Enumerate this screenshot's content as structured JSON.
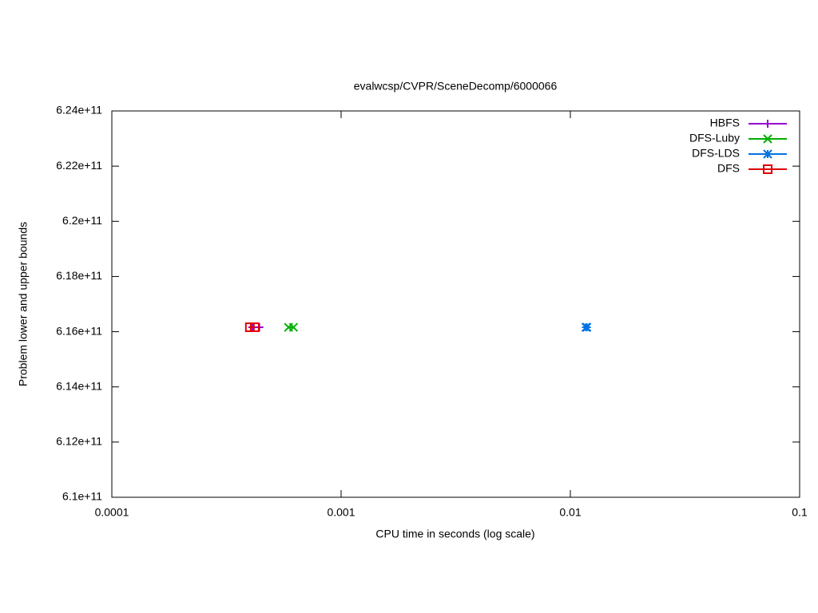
{
  "chart_data": {
    "type": "line",
    "title": "evalwcsp/CVPR/SceneDecomp/6000066",
    "x_label": "CPU time in seconds (log scale)",
    "y_label": "Problem lower and upper bounds",
    "x_scale": "log",
    "xlim": [
      0.0001,
      0.1
    ],
    "xticks": [
      0.0001,
      0.001,
      0.01,
      0.1
    ],
    "ylim": [
      610000000000,
      624000000000
    ],
    "yticks": [
      {
        "value": 610000000000,
        "label": "6.1e+11"
      },
      {
        "value": 612000000000,
        "label": "6.12e+11"
      },
      {
        "value": 614000000000,
        "label": "6.14e+11"
      },
      {
        "value": 616000000000,
        "label": "6.16e+11"
      },
      {
        "value": 618000000000,
        "label": "6.18e+11"
      },
      {
        "value": 620000000000,
        "label": "6.2e+11"
      },
      {
        "value": 622000000000,
        "label": "6.22e+11"
      },
      {
        "value": 624000000000,
        "label": "6.24e+11"
      }
    ],
    "legend": "top-right",
    "series": [
      {
        "name": "HBFS",
        "color": "#9400d3",
        "marker": "plus",
        "x": [
          0.00041,
          0.00044
        ],
        "values": [
          616160000000,
          616160000000
        ]
      },
      {
        "name": "DFS-Luby",
        "color": "#00b000",
        "marker": "cross",
        "x": [
          0.00059,
          0.00062
        ],
        "values": [
          616160000000,
          616160000000
        ]
      },
      {
        "name": "DFS-LDS",
        "color": "#0072e0",
        "marker": "star",
        "x": [
          0.0117,
          0.0118
        ],
        "values": [
          616160000000,
          616160000000
        ]
      },
      {
        "name": "DFS",
        "color": "#e00000",
        "marker": "square",
        "x": [
          0.0004,
          0.00042
        ],
        "values": [
          616160000000,
          616160000000
        ]
      }
    ]
  }
}
